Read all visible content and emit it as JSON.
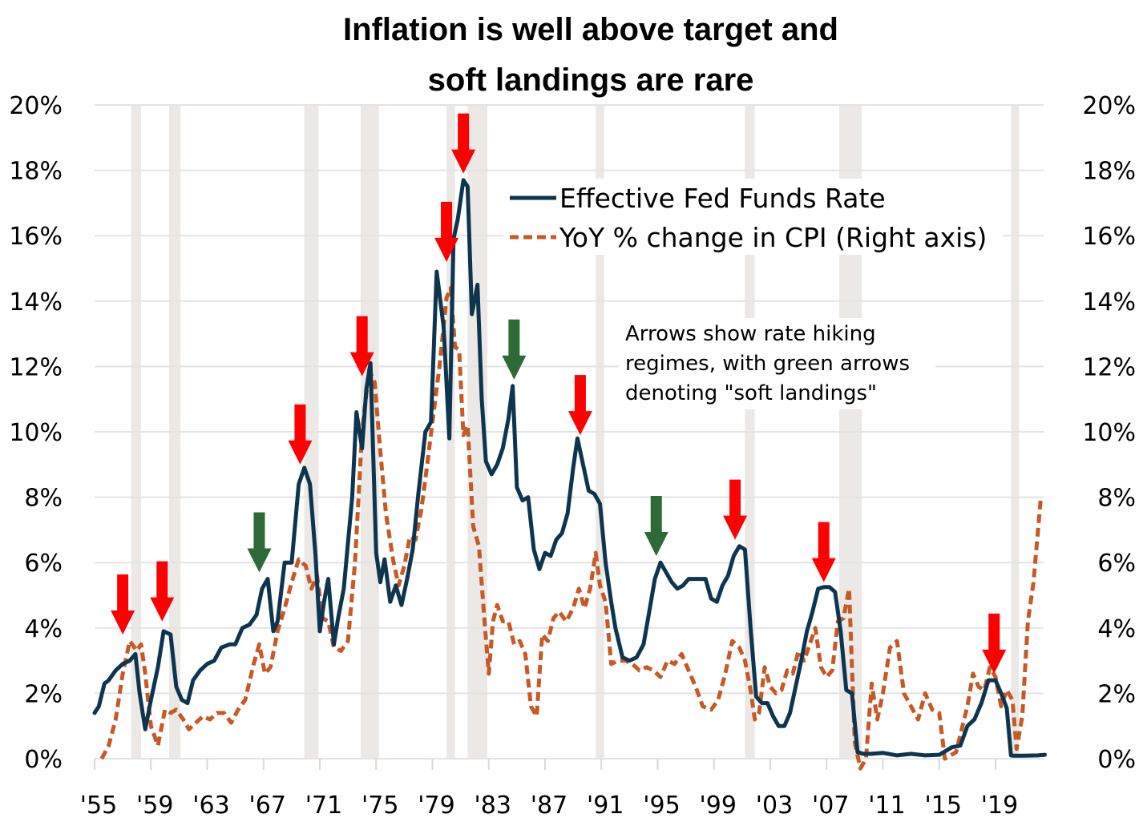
{
  "chart_data": {
    "type": "line",
    "title": "Inflation is well above target and soft landings are rare",
    "title_lines": [
      "Inflation is well above target and",
      "soft landings are rare"
    ],
    "xlabel": "",
    "ylabel_left": "",
    "ylabel_right": "",
    "xlim": [
      1955,
      2022.5
    ],
    "ylim_left": [
      0,
      20
    ],
    "ylim_right": [
      0,
      20
    ],
    "grid": true,
    "legend_position": "top-right",
    "x_ticks": [
      1955,
      1959,
      1963,
      1967,
      1971,
      1975,
      1979,
      1983,
      1987,
      1991,
      1995,
      1999,
      2003,
      2007,
      2011,
      2015,
      2019
    ],
    "x_tick_labels": [
      "'55",
      "'59",
      "'63",
      "'67",
      "'71",
      "'75",
      "'79",
      "'83",
      "'87",
      "'91",
      "'95",
      "'99",
      "'03",
      "'07",
      "'11",
      "'15",
      "'19"
    ],
    "y_ticks": [
      0,
      2,
      4,
      6,
      8,
      10,
      12,
      14,
      16,
      18,
      20
    ],
    "y_tick_labels_left": [
      "0%",
      "2%",
      "4%",
      "6%",
      "8%",
      "10%",
      "12%",
      "14%",
      "16%",
      "18%",
      "20%"
    ],
    "y_tick_labels_right": [
      "0%",
      "2%",
      "4%",
      "6%",
      "8%",
      "10%",
      "12%",
      "14%",
      "16%",
      "18%",
      "20%"
    ],
    "colors": {
      "fed_funds": "#0d3550",
      "cpi": "#c65a26",
      "red_arrow": "#ff0000",
      "green_arrow": "#2d6a36",
      "recession": "#ebe8e6",
      "grid": "#e3e3e3"
    },
    "recessions": [
      [
        1957.6,
        1958.3
      ],
      [
        1960.3,
        1961.1
      ],
      [
        1969.9,
        1970.9
      ],
      [
        1973.9,
        1975.2
      ],
      [
        1980.0,
        1980.6
      ],
      [
        1981.5,
        1982.9
      ],
      [
        1990.6,
        1991.2
      ],
      [
        2001.2,
        2001.9
      ],
      [
        2007.9,
        2009.5
      ],
      [
        2020.1,
        2020.4
      ]
    ],
    "series": [
      {
        "name": "Effective Fed Funds Rate",
        "axis": "left",
        "style": "solid",
        "x": [
          1955.0,
          1955.3,
          1955.7,
          1956.0,
          1956.5,
          1957.0,
          1957.5,
          1957.9,
          1958.2,
          1958.6,
          1959.0,
          1959.5,
          1959.9,
          1960.4,
          1960.8,
          1961.2,
          1961.6,
          1962.0,
          1962.5,
          1963.0,
          1963.5,
          1964.0,
          1964.6,
          1965.0,
          1965.5,
          1966.0,
          1966.5,
          1966.9,
          1967.3,
          1967.7,
          1968.0,
          1968.5,
          1969.0,
          1969.5,
          1969.9,
          1970.3,
          1970.7,
          1971.0,
          1971.3,
          1971.6,
          1972.0,
          1972.3,
          1972.7,
          1973.0,
          1973.3,
          1973.6,
          1974.0,
          1974.3,
          1974.6,
          1975.0,
          1975.3,
          1975.6,
          1976.0,
          1976.4,
          1976.8,
          1977.2,
          1977.6,
          1978.0,
          1978.5,
          1978.9,
          1979.3,
          1979.8,
          1980.2,
          1980.5,
          1980.8,
          1981.2,
          1981.5,
          1981.8,
          1982.2,
          1982.5,
          1982.8,
          1983.2,
          1983.6,
          1984.0,
          1984.4,
          1984.7,
          1985.0,
          1985.4,
          1985.8,
          1986.2,
          1986.6,
          1987.0,
          1987.4,
          1987.8,
          1988.2,
          1988.6,
          1989.0,
          1989.3,
          1989.7,
          1990.1,
          1990.5,
          1990.9,
          1991.3,
          1991.7,
          1992.0,
          1992.5,
          1993.0,
          1993.5,
          1994.0,
          1994.4,
          1994.8,
          1995.2,
          1995.6,
          1996.0,
          1996.4,
          1996.8,
          1997.2,
          1997.6,
          1998.0,
          1998.4,
          1998.8,
          1999.2,
          1999.6,
          2000.0,
          2000.4,
          2000.8,
          2001.2,
          2001.6,
          2002.0,
          2002.4,
          2002.8,
          2003.2,
          2003.6,
          2004.0,
          2004.4,
          2004.8,
          2005.2,
          2005.6,
          2006.0,
          2006.4,
          2006.8,
          2007.2,
          2007.6,
          2008.0,
          2008.4,
          2008.8,
          2009.2,
          2009.6,
          2010.2,
          2011.0,
          2012.0,
          2013.0,
          2014.0,
          2015.0,
          2015.9,
          2016.5,
          2017.0,
          2017.5,
          2018.0,
          2018.5,
          2019.0,
          2019.4,
          2019.8,
          2020.1,
          2020.3,
          2021.0,
          2022.0,
          2022.5
        ],
        "y": [
          1.4,
          1.6,
          2.3,
          2.4,
          2.7,
          2.9,
          3.0,
          3.2,
          2.0,
          0.9,
          1.8,
          2.8,
          3.9,
          3.8,
          2.2,
          1.8,
          1.7,
          2.4,
          2.7,
          2.9,
          3.0,
          3.4,
          3.5,
          3.5,
          4.0,
          4.1,
          4.4,
          5.2,
          5.5,
          3.9,
          4.2,
          6.0,
          6.0,
          8.4,
          8.9,
          8.4,
          6.2,
          3.9,
          4.8,
          5.5,
          3.5,
          4.3,
          5.2,
          6.6,
          8.0,
          10.6,
          9.5,
          11.3,
          12.1,
          6.3,
          5.4,
          6.1,
          4.8,
          5.3,
          4.7,
          5.5,
          6.4,
          8.1,
          10.0,
          10.3,
          14.9,
          13.2,
          9.8,
          15.9,
          16.5,
          17.7,
          17.5,
          13.6,
          14.5,
          11.0,
          9.1,
          8.7,
          9.0,
          9.5,
          10.4,
          11.4,
          8.3,
          7.9,
          8.0,
          6.4,
          5.8,
          6.3,
          6.2,
          6.7,
          6.9,
          7.5,
          8.9,
          9.8,
          9.0,
          8.2,
          8.1,
          7.8,
          6.0,
          4.8,
          4.0,
          3.1,
          3.0,
          3.1,
          3.5,
          4.5,
          5.5,
          6.0,
          5.7,
          5.4,
          5.2,
          5.3,
          5.5,
          5.5,
          5.5,
          5.5,
          4.9,
          4.8,
          5.3,
          5.6,
          6.2,
          6.5,
          6.4,
          4.0,
          1.9,
          1.7,
          1.7,
          1.3,
          1.0,
          1.0,
          1.4,
          2.2,
          3.0,
          3.9,
          4.5,
          5.2,
          5.25,
          5.25,
          5.1,
          3.9,
          2.1,
          2.0,
          0.2,
          0.15,
          0.15,
          0.18,
          0.1,
          0.15,
          0.1,
          0.12,
          0.35,
          0.4,
          1.0,
          1.2,
          1.7,
          2.4,
          2.4,
          2.0,
          1.55,
          0.1,
          0.09,
          0.09,
          0.1,
          0.12
        ]
      },
      {
        "name": "YoY % change in CPI (Right axis)",
        "axis": "right",
        "style": "dashed",
        "x": [
          1955.5,
          1956.0,
          1956.5,
          1957.0,
          1957.5,
          1958.0,
          1958.3,
          1958.6,
          1959.0,
          1959.5,
          1960.0,
          1960.4,
          1960.8,
          1961.3,
          1961.7,
          1962.2,
          1962.7,
          1963.2,
          1963.7,
          1964.2,
          1964.7,
          1965.2,
          1965.7,
          1966.3,
          1966.7,
          1967.1,
          1967.5,
          1968.0,
          1968.5,
          1969.0,
          1969.5,
          1970.0,
          1970.4,
          1970.8,
          1971.2,
          1971.6,
          1972.0,
          1972.5,
          1973.0,
          1973.5,
          1974.0,
          1974.5,
          1974.9,
          1975.3,
          1975.7,
          1976.2,
          1976.6,
          1977.0,
          1977.4,
          1977.8,
          1978.2,
          1978.6,
          1979.0,
          1979.5,
          1980.0,
          1980.3,
          1980.6,
          1980.9,
          1981.2,
          1981.5,
          1981.9,
          1982.3,
          1982.7,
          1983.0,
          1983.3,
          1983.6,
          1984.0,
          1984.4,
          1984.8,
          1985.2,
          1985.6,
          1986.0,
          1986.4,
          1986.8,
          1987.2,
          1987.6,
          1988.0,
          1988.5,
          1989.0,
          1989.4,
          1989.8,
          1990.2,
          1990.6,
          1990.9,
          1991.3,
          1991.7,
          1992.2,
          1992.7,
          1993.2,
          1993.7,
          1994.2,
          1994.7,
          1995.2,
          1995.7,
          1996.2,
          1996.7,
          1997.2,
          1997.7,
          1998.2,
          1998.8,
          1999.3,
          1999.8,
          2000.3,
          2000.8,
          2001.2,
          2001.6,
          2001.9,
          2002.2,
          2002.6,
          2003.0,
          2003.4,
          2003.8,
          2004.2,
          2004.6,
          2005.0,
          2005.4,
          2005.8,
          2006.2,
          2006.6,
          2007.0,
          2007.4,
          2007.8,
          2008.2,
          2008.6,
          2009.0,
          2009.4,
          2009.8,
          2010.2,
          2010.6,
          2011.0,
          2011.5,
          2012.0,
          2012.5,
          2013.0,
          2013.5,
          2014.0,
          2014.5,
          2015.0,
          2015.4,
          2015.8,
          2016.2,
          2016.6,
          2017.0,
          2017.4,
          2017.8,
          2018.2,
          2018.6,
          2019.0,
          2019.4,
          2019.8,
          2020.2,
          2020.5,
          2020.9,
          2021.3,
          2021.7,
          2022.2
        ],
        "y": [
          0.0,
          0.4,
          1.2,
          2.6,
          3.6,
          3.3,
          3.5,
          2.6,
          1.0,
          0.4,
          1.5,
          1.4,
          1.5,
          1.2,
          0.9,
          1.1,
          1.3,
          1.2,
          1.4,
          1.4,
          1.1,
          1.5,
          1.8,
          2.9,
          3.5,
          2.6,
          2.8,
          3.9,
          4.6,
          5.4,
          6.1,
          5.9,
          5.2,
          5.6,
          4.3,
          4.2,
          3.4,
          3.3,
          3.6,
          6.0,
          10.0,
          11.9,
          11.5,
          9.4,
          7.5,
          6.1,
          5.3,
          5.9,
          6.8,
          6.7,
          7.6,
          8.9,
          10.3,
          12.0,
          14.1,
          14.4,
          12.6,
          12.5,
          9.9,
          10.2,
          7.1,
          6.5,
          4.2,
          2.6,
          4.2,
          4.7,
          4.2,
          4.2,
          3.5,
          3.6,
          3.2,
          1.6,
          1.3,
          3.8,
          3.6,
          4.3,
          4.5,
          4.2,
          4.6,
          5.2,
          4.6,
          5.2,
          6.3,
          5.3,
          4.8,
          2.9,
          3.0,
          3.0,
          2.9,
          2.7,
          2.8,
          2.7,
          2.5,
          3.0,
          2.9,
          3.2,
          2.7,
          2.2,
          1.6,
          1.5,
          1.8,
          2.6,
          3.6,
          3.4,
          3.0,
          2.1,
          1.2,
          1.4,
          2.8,
          2.2,
          2.0,
          2.1,
          2.7,
          2.6,
          3.3,
          3.0,
          3.5,
          4.0,
          2.8,
          2.5,
          2.7,
          4.2,
          4.3,
          5.2,
          0.5,
          -1.5,
          0.0,
          2.3,
          1.2,
          2.0,
          3.4,
          3.6,
          2.0,
          1.6,
          1.2,
          2.0,
          1.5,
          1.4,
          0.0,
          0.1,
          0.2,
          0.9,
          1.6,
          2.6,
          2.2,
          2.1,
          2.8,
          2.5,
          1.6,
          2.1,
          1.8,
          0.3,
          1.3,
          4.2,
          5.4,
          7.9
        ]
      }
    ],
    "arrows": [
      {
        "year": 1957.0,
        "value": 3.8,
        "color": "red",
        "meaning": "rate hiking regime"
      },
      {
        "year": 1959.8,
        "value": 4.2,
        "color": "red",
        "meaning": "rate hiking regime"
      },
      {
        "year": 1966.7,
        "value": 5.7,
        "color": "green",
        "meaning": "soft landing"
      },
      {
        "year": 1969.6,
        "value": 9.0,
        "color": "red",
        "meaning": "rate hiking regime"
      },
      {
        "year": 1974.0,
        "value": 11.7,
        "color": "red",
        "meaning": "rate hiking regime"
      },
      {
        "year": 1980.0,
        "value": 15.2,
        "color": "red",
        "meaning": "rate hiking regime"
      },
      {
        "year": 1981.2,
        "value": 17.9,
        "color": "red",
        "meaning": "rate hiking regime"
      },
      {
        "year": 1984.8,
        "value": 11.6,
        "color": "green",
        "meaning": "soft landing"
      },
      {
        "year": 1989.5,
        "value": 9.9,
        "color": "red",
        "meaning": "rate hiking regime"
      },
      {
        "year": 1994.9,
        "value": 6.2,
        "color": "green",
        "meaning": "soft landing"
      },
      {
        "year": 2000.5,
        "value": 6.7,
        "color": "red",
        "meaning": "rate hiking regime"
      },
      {
        "year": 2006.8,
        "value": 5.4,
        "color": "red",
        "meaning": "rate hiking regime"
      },
      {
        "year": 2018.9,
        "value": 2.6,
        "color": "red",
        "meaning": "rate hiking regime"
      }
    ],
    "annotation_lines": [
      "Arrows show rate hiking",
      "regimes, with green arrows",
      "denoting \"soft landings\""
    ],
    "legend": [
      {
        "label": "Effective Fed Funds Rate",
        "style": "solid"
      },
      {
        "label": "YoY % change in CPI (Right axis)",
        "style": "dashed"
      }
    ]
  }
}
